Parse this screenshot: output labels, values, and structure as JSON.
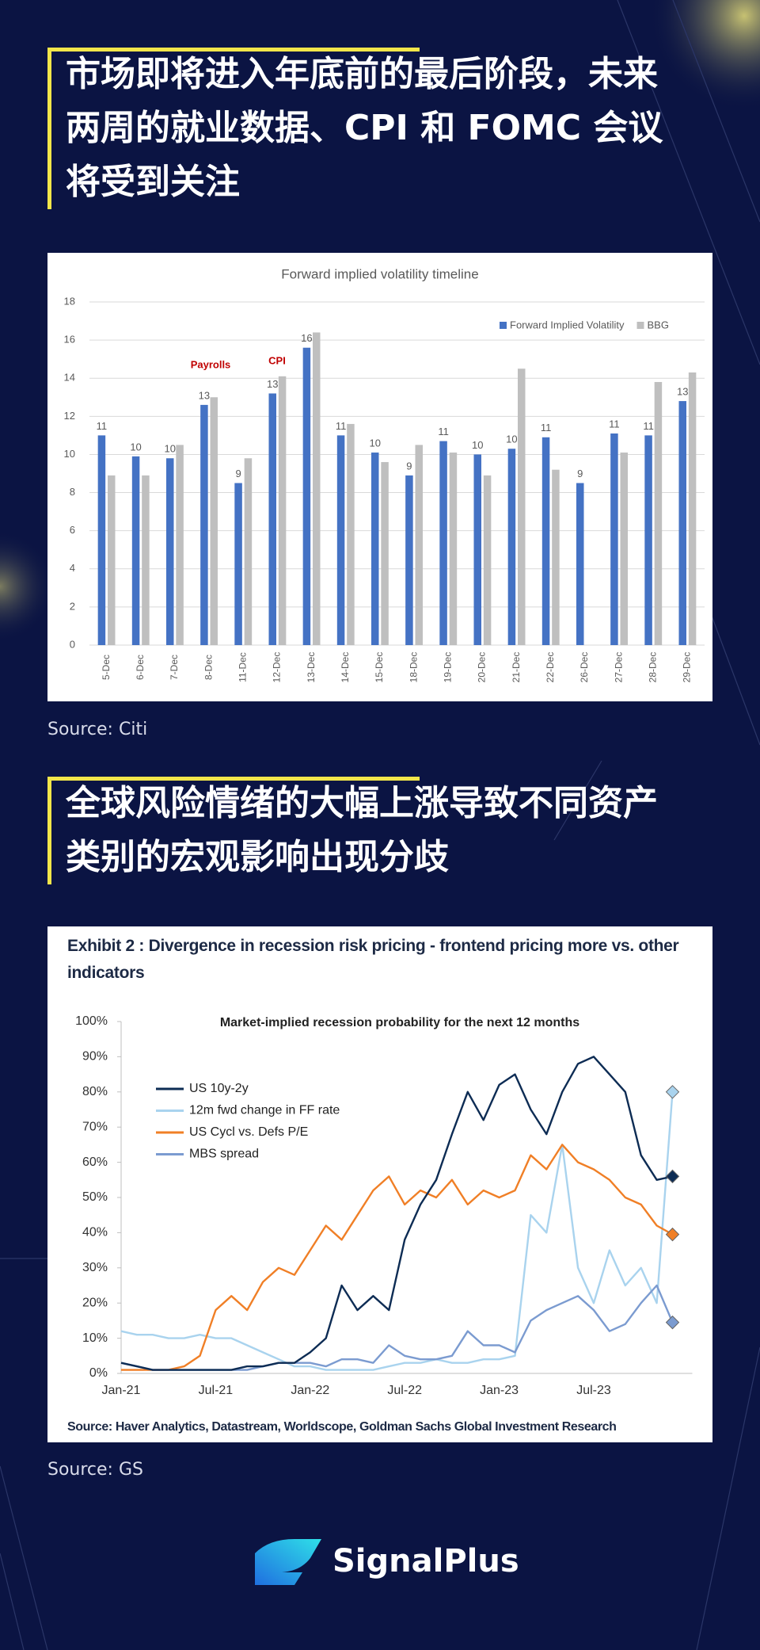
{
  "headings": [
    "市场即将进入年底前的最后阶段，未来两周的就业数据、CPI 和 FOMC 会议将受到关注",
    "全球风险情绪的大幅上涨导致不同资产类别的宏观影响出现分歧"
  ],
  "sources": [
    "Source: Citi",
    "Source: GS"
  ],
  "logo": "SignalPlus",
  "chart_data": [
    {
      "type": "bar",
      "title": "Forward implied volatility timeline",
      "categories": [
        "5-Dec",
        "6-Dec",
        "7-Dec",
        "8-Dec",
        "11-Dec",
        "12-Dec",
        "13-Dec",
        "14-Dec",
        "15-Dec",
        "18-Dec",
        "19-Dec",
        "20-Dec",
        "21-Dec",
        "22-Dec",
        "26-Dec",
        "27-Dec",
        "28-Dec",
        "29-Dec"
      ],
      "series": [
        {
          "name": "Forward Implied Volatility",
          "color": "#4472c4",
          "values": [
            11.0,
            9.9,
            9.8,
            12.6,
            8.5,
            13.2,
            15.6,
            11.0,
            10.1,
            8.9,
            10.7,
            10.0,
            10.3,
            10.9,
            8.5,
            11.1,
            11.0,
            12.8
          ],
          "value_labels": [
            "11",
            "10",
            "10",
            "13",
            "9",
            "13",
            "16",
            "11",
            "10",
            "9",
            "11",
            "10",
            "10",
            "11",
            "9",
            "11",
            "11",
            "13"
          ]
        },
        {
          "name": "BBG",
          "color": "#bfbfbf",
          "values": [
            8.9,
            8.9,
            10.5,
            13.0,
            9.8,
            14.1,
            16.4,
            11.6,
            9.6,
            10.5,
            10.1,
            8.9,
            14.5,
            9.2,
            null,
            10.1,
            13.8,
            14.3
          ]
        }
      ],
      "annotations": [
        "Payrolls",
        "CPI"
      ],
      "ylim": [
        0,
        18
      ],
      "yticks": [
        0,
        2,
        4,
        6,
        8,
        10,
        12,
        14,
        16,
        18
      ],
      "grid": true,
      "legend": "top-right"
    },
    {
      "type": "line",
      "title": "Exhibit 2 : Divergence in recession risk pricing - frontend pricing more vs. other indicators",
      "subtitle": "Market-implied recession probability  for the next 12 months",
      "source": "Source: Haver Analytics, Datastream, Worldscope, Goldman Sachs Global Investment Research",
      "categories": [
        "Jan-21",
        null,
        null,
        null,
        null,
        null,
        "Jul-21",
        null,
        null,
        null,
        null,
        null,
        "Jan-22",
        null,
        null,
        null,
        null,
        null,
        "Jul-22",
        null,
        null,
        null,
        null,
        null,
        "Jan-23",
        null,
        null,
        null,
        null,
        null,
        "Jul-23",
        null,
        null,
        null,
        null,
        null
      ],
      "series": [
        {
          "name": "US 10y-2y",
          "color": "#0d2c54",
          "values": [
            3,
            2,
            1,
            1,
            1,
            1,
            1,
            1,
            2,
            2,
            3,
            3,
            6,
            10,
            25,
            18,
            22,
            18,
            38,
            48,
            55,
            68,
            80,
            72,
            82,
            85,
            75,
            68,
            80,
            88,
            90,
            85,
            80,
            62,
            55,
            56
          ]
        },
        {
          "name": "12m fwd change in FF rate",
          "color": "#a9d3ee",
          "values": [
            12,
            11,
            11,
            10,
            10,
            11,
            10,
            10,
            8,
            6,
            4,
            2,
            2,
            1,
            1,
            1,
            1,
            2,
            3,
            3,
            4,
            3,
            3,
            4,
            4,
            5,
            45,
            40,
            65,
            30,
            20,
            35,
            25,
            30,
            20,
            80
          ]
        },
        {
          "name": "US Cycl vs. Defs P/E",
          "color": "#f07f26",
          "values": [
            1,
            1,
            1,
            1,
            2,
            5,
            18,
            22,
            18,
            26,
            30,
            28,
            35,
            42,
            38,
            45,
            52,
            56,
            48,
            52,
            50,
            55,
            48,
            52,
            50,
            52,
            62,
            58,
            65,
            60,
            58,
            55,
            50,
            48,
            42,
            39.5
          ]
        },
        {
          "name": "MBS spread",
          "color": "#7b9bd0",
          "values": [
            3,
            2,
            1,
            1,
            1,
            1,
            1,
            1,
            1,
            2,
            3,
            3,
            3,
            2,
            4,
            4,
            3,
            8,
            5,
            4,
            4,
            5,
            12,
            8,
            8,
            6,
            15,
            18,
            20,
            22,
            18,
            12,
            14,
            20,
            25,
            14.5
          ]
        }
      ],
      "ylim": [
        0,
        100
      ],
      "yticks": [
        {
          "value": 0,
          "label": "0%"
        },
        {
          "value": 10,
          "label": "10%"
        },
        {
          "value": 20,
          "label": "20%"
        },
        {
          "value": 30,
          "label": "30%"
        },
        {
          "value": 40,
          "label": "40%"
        },
        {
          "value": 50,
          "label": "50%"
        },
        {
          "value": 60,
          "label": "60%"
        },
        {
          "value": 70,
          "label": "70%"
        },
        {
          "value": 80,
          "label": "80%"
        },
        {
          "value": 90,
          "label": "90%"
        },
        {
          "value": 100,
          "label": "100%"
        }
      ],
      "grid": false,
      "legend": "top-left"
    }
  ]
}
